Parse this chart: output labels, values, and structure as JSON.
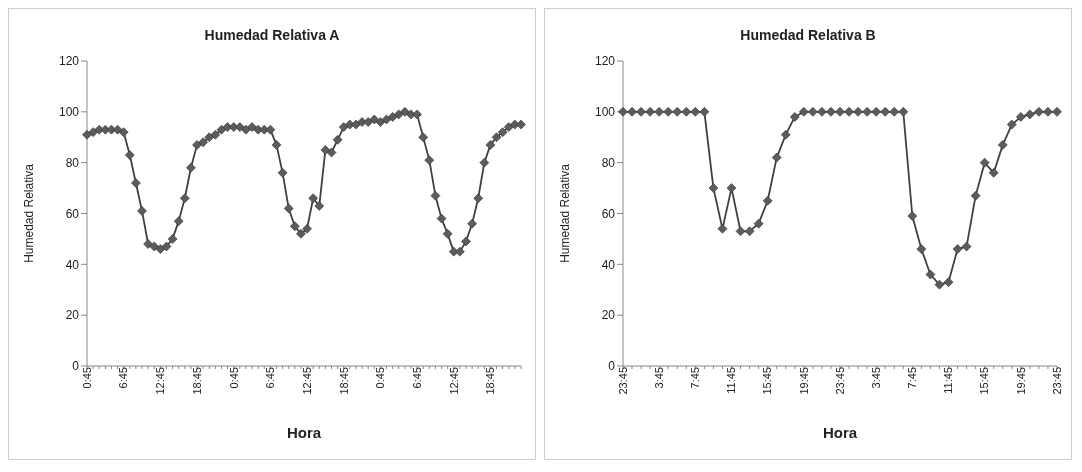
{
  "chart_data": [
    {
      "type": "line",
      "title": "Humedad Relativa A",
      "xlabel": "Hora",
      "ylabel": "Humedad Relativa",
      "categories": [
        "0:45",
        null,
        null,
        null,
        null,
        null,
        "6:45",
        null,
        null,
        null,
        null,
        null,
        "12:45",
        null,
        null,
        null,
        null,
        null,
        "18:45",
        null,
        null,
        null,
        null,
        null,
        "0:45",
        null,
        null,
        null,
        null,
        null,
        "6:45",
        null,
        null,
        null,
        null,
        null,
        "12:45",
        null,
        null,
        null,
        null,
        null,
        "18:45",
        null,
        null,
        null,
        null,
        null,
        "0:45",
        null,
        null,
        null,
        null,
        null,
        "6:45",
        null,
        null,
        null,
        null,
        null,
        "12:45",
        null,
        null,
        null,
        null,
        null,
        "18:45",
        null,
        null,
        null,
        null,
        null
      ],
      "series": [
        {
          "color": "#404040",
          "values": [
            91,
            92,
            93,
            93,
            93,
            93,
            92,
            83,
            72,
            61,
            48,
            47,
            46,
            47,
            50,
            57,
            66,
            78,
            87,
            88,
            90,
            91,
            93,
            94,
            94,
            94,
            93,
            94,
            93,
            93,
            93,
            87,
            76,
            62,
            55,
            52,
            54,
            66,
            63,
            85,
            84,
            89,
            94,
            95,
            95,
            96,
            96,
            97,
            96,
            97,
            98,
            99,
            100,
            99,
            99,
            90,
            81,
            67,
            58,
            52,
            45,
            45,
            49,
            56,
            66,
            80,
            87,
            90,
            92,
            94,
            95,
            95
          ]
        }
      ],
      "ylim": [
        0,
        120
      ],
      "yticks": [
        0,
        20,
        40,
        60,
        80,
        100,
        120
      ],
      "marker": "diamond",
      "line_style": "solid"
    },
    {
      "type": "line",
      "title": "Humedad Relativa B",
      "xlabel": "Hora",
      "ylabel": "Humedad Relativa",
      "categories": [
        "23:45",
        null,
        null,
        null,
        "3:45",
        null,
        null,
        null,
        "7:45",
        null,
        null,
        null,
        "11:45",
        null,
        null,
        null,
        "15:45",
        null,
        null,
        null,
        "19:45",
        null,
        null,
        null,
        "23:45",
        null,
        null,
        null,
        "3:45",
        null,
        null,
        null,
        "7:45",
        null,
        null,
        null,
        "11:45",
        null,
        null,
        null,
        "15:45",
        null,
        null,
        null,
        "19:45",
        null,
        null,
        null,
        "23:45"
      ],
      "series": [
        {
          "color": "#404040",
          "values": [
            100,
            100,
            100,
            100,
            100,
            100,
            100,
            100,
            100,
            100,
            70,
            54,
            70,
            53,
            53,
            56,
            65,
            82,
            91,
            98,
            100,
            100,
            100,
            100,
            100,
            100,
            100,
            100,
            100,
            100,
            100,
            100,
            59,
            46,
            36,
            32,
            33,
            46,
            47,
            67,
            80,
            76,
            87,
            95,
            98,
            99,
            100,
            100,
            100
          ]
        }
      ],
      "ylim": [
        0,
        120
      ],
      "yticks": [
        0,
        20,
        40,
        60,
        80,
        100,
        120
      ],
      "marker": "diamond",
      "line_style": "solid"
    }
  ]
}
